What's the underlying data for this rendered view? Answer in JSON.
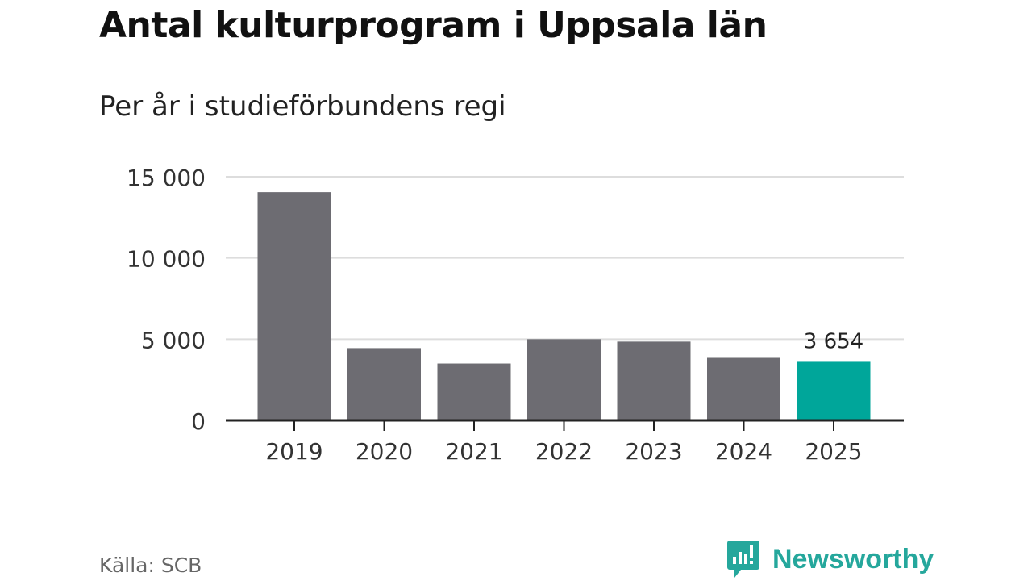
{
  "header": {
    "title": "Antal kulturprogram i Uppsala län",
    "subtitle": "Per år i studieförbundens regi"
  },
  "footer": {
    "source": "Källa: SCB",
    "brand": "Newsworthy"
  },
  "colors": {
    "bar": "#6d6c72",
    "highlight": "#00a69a",
    "grid": "#dddddd",
    "axis": "#222222",
    "brand": "#25a79c"
  },
  "chart_data": {
    "type": "bar",
    "title": "Antal kulturprogram i Uppsala län",
    "subtitle": "Per år i studieförbundens regi",
    "categories": [
      "2019",
      "2020",
      "2021",
      "2022",
      "2023",
      "2024",
      "2025"
    ],
    "values": [
      14050,
      4450,
      3500,
      5000,
      4850,
      3850,
      3654
    ],
    "highlight_index": 6,
    "data_labels": [
      {
        "index": 6,
        "text": "3 654"
      }
    ],
    "yticks": [
      {
        "value": 0,
        "label": "0"
      },
      {
        "value": 5000,
        "label": "5 000"
      },
      {
        "value": 10000,
        "label": "10 000"
      },
      {
        "value": 15000,
        "label": "15 000"
      }
    ],
    "ylim": [
      0,
      15000
    ],
    "grid": true,
    "xlabel": "",
    "ylabel": ""
  }
}
